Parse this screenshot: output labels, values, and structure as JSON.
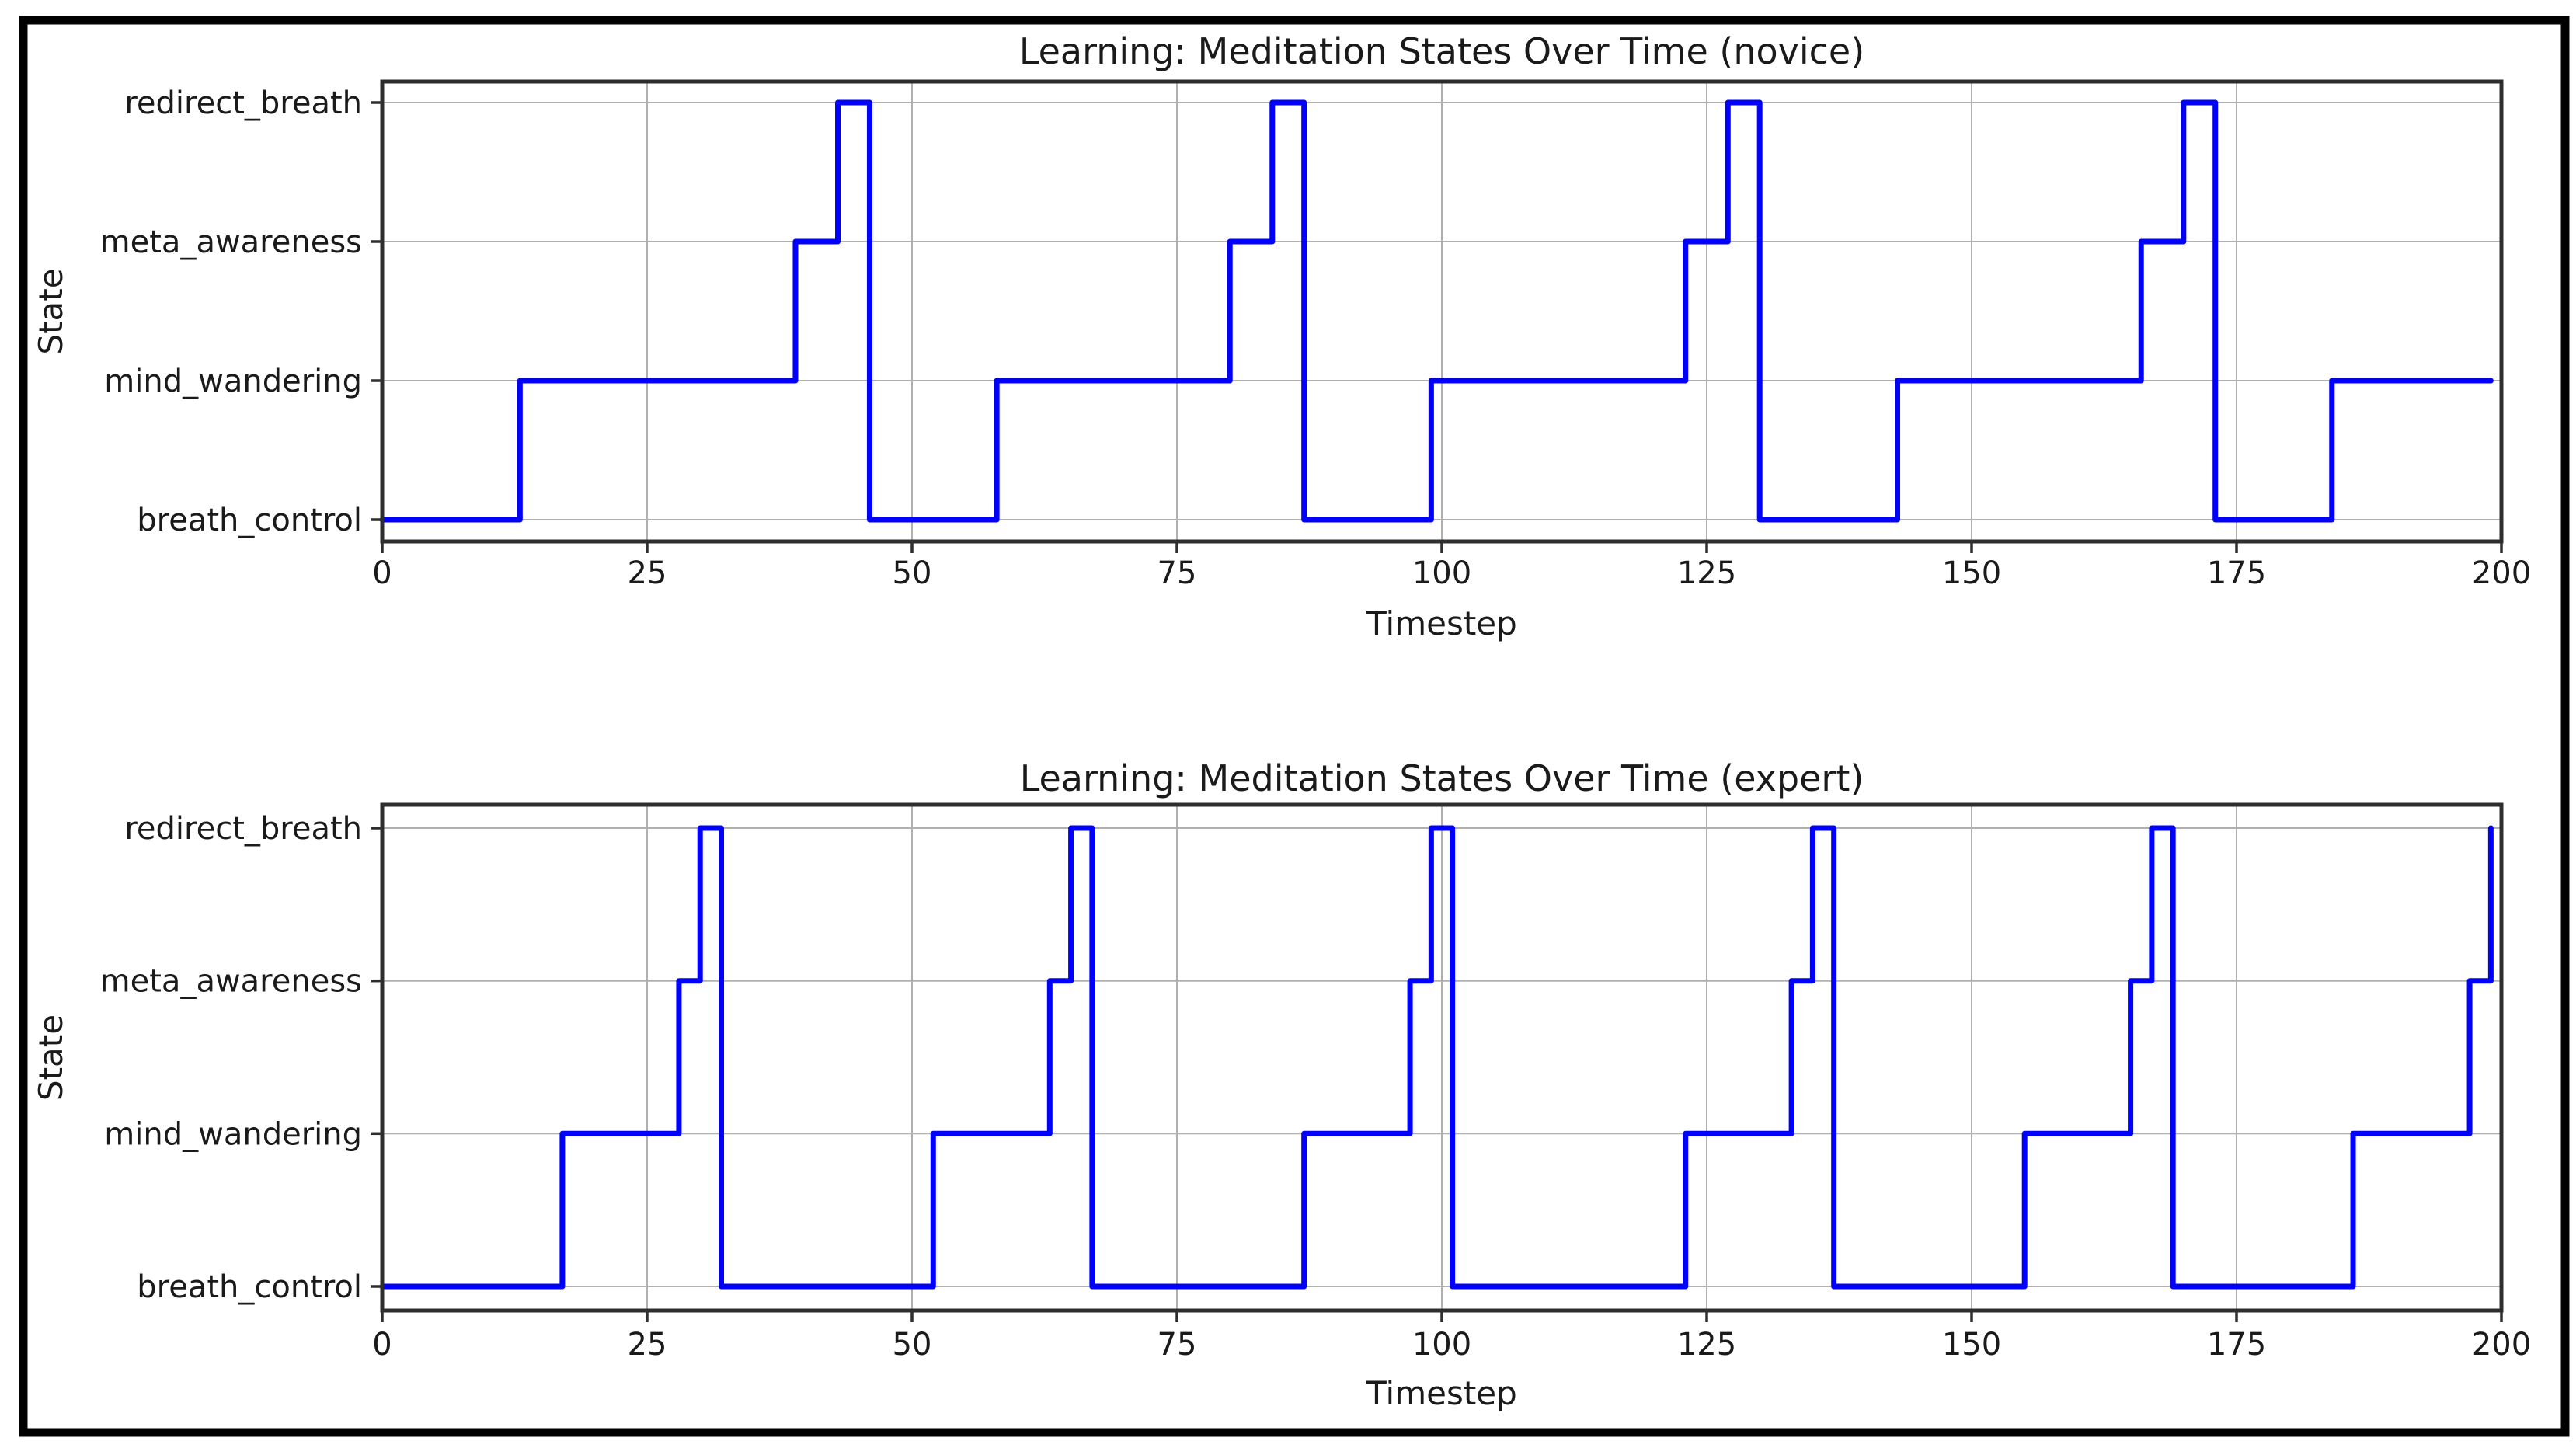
{
  "figure": {
    "background": "#ffffff",
    "border_color": "#000000",
    "line_color": "#0000ff",
    "grid_color": "#b0b0b0",
    "spine_color": "#2e2e2e",
    "tick_color": "#2e2e2e",
    "text_color": "#1a1a1a"
  },
  "chart_data": [
    {
      "type": "line",
      "line_style": "step-post",
      "title": "Learning: Meditation States Over Time (novice)",
      "xlabel": "Timestep",
      "ylabel": "State",
      "xlim": [
        0,
        200
      ],
      "x_ticks": [
        0,
        25,
        50,
        75,
        100,
        125,
        150,
        175,
        200
      ],
      "y_categories": [
        "breath_control",
        "mind_wandering",
        "meta_awareness",
        "redirect_breath"
      ],
      "grid": true,
      "legend": "none",
      "series": [
        {
          "name": "state",
          "color": "#0000ff",
          "end": 199,
          "steps": [
            [
              0,
              "breath_control"
            ],
            [
              13,
              "mind_wandering"
            ],
            [
              39,
              "meta_awareness"
            ],
            [
              43,
              "redirect_breath"
            ],
            [
              46,
              "breath_control"
            ],
            [
              58,
              "mind_wandering"
            ],
            [
              80,
              "meta_awareness"
            ],
            [
              84,
              "redirect_breath"
            ],
            [
              87,
              "breath_control"
            ],
            [
              99,
              "mind_wandering"
            ],
            [
              123,
              "meta_awareness"
            ],
            [
              127,
              "redirect_breath"
            ],
            [
              130,
              "breath_control"
            ],
            [
              143,
              "mind_wandering"
            ],
            [
              166,
              "meta_awareness"
            ],
            [
              170,
              "redirect_breath"
            ],
            [
              173,
              "breath_control"
            ],
            [
              184,
              "mind_wandering"
            ]
          ]
        }
      ]
    },
    {
      "type": "line",
      "line_style": "step-post",
      "title": "Learning: Meditation States Over Time (expert)",
      "xlabel": "Timestep",
      "ylabel": "State",
      "xlim": [
        0,
        200
      ],
      "x_ticks": [
        0,
        25,
        50,
        75,
        100,
        125,
        150,
        175,
        200
      ],
      "y_categories": [
        "breath_control",
        "mind_wandering",
        "meta_awareness",
        "redirect_breath"
      ],
      "grid": true,
      "legend": "none",
      "series": [
        {
          "name": "state",
          "color": "#0000ff",
          "end": 199,
          "steps": [
            [
              0,
              "breath_control"
            ],
            [
              17,
              "mind_wandering"
            ],
            [
              28,
              "meta_awareness"
            ],
            [
              30,
              "redirect_breath"
            ],
            [
              32,
              "breath_control"
            ],
            [
              52,
              "mind_wandering"
            ],
            [
              63,
              "meta_awareness"
            ],
            [
              65,
              "redirect_breath"
            ],
            [
              67,
              "breath_control"
            ],
            [
              87,
              "mind_wandering"
            ],
            [
              97,
              "meta_awareness"
            ],
            [
              99,
              "redirect_breath"
            ],
            [
              101,
              "breath_control"
            ],
            [
              123,
              "mind_wandering"
            ],
            [
              133,
              "meta_awareness"
            ],
            [
              135,
              "redirect_breath"
            ],
            [
              137,
              "breath_control"
            ],
            [
              155,
              "mind_wandering"
            ],
            [
              165,
              "meta_awareness"
            ],
            [
              167,
              "redirect_breath"
            ],
            [
              169,
              "breath_control"
            ],
            [
              186,
              "mind_wandering"
            ],
            [
              197,
              "meta_awareness"
            ],
            [
              199,
              "redirect_breath"
            ]
          ]
        }
      ]
    }
  ]
}
